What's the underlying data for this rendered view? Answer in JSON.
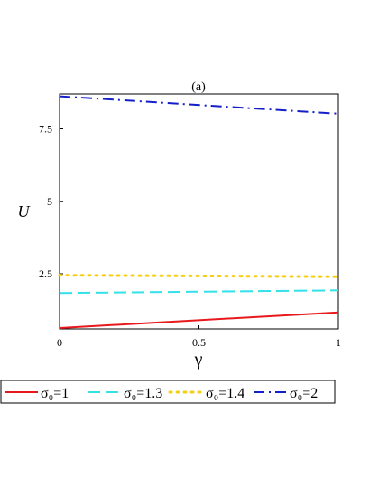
{
  "chart_data": {
    "type": "line",
    "title": "(a)",
    "xlabel": "γ",
    "ylabel": "U",
    "xlim": [
      0,
      1
    ],
    "ylim": [
      0.6,
      8.7
    ],
    "xticks": [
      0,
      0.5,
      1
    ],
    "xtick_labels": [
      "0",
      "0.5",
      "1"
    ],
    "yticks": [
      2.5,
      5,
      7.5
    ],
    "ytick_labels": [
      "2.5",
      "5",
      "7.5"
    ],
    "grid": false,
    "legend_position": "bottom",
    "series": [
      {
        "name": "σ₀=1",
        "color": "#e8191d",
        "dash": "solid",
        "x": [
          0,
          1
        ],
        "y": [
          0.63,
          1.17
        ]
      },
      {
        "name": "σ₀=1.3",
        "color": "#33e1e8",
        "dash": "dash",
        "x": [
          0,
          1
        ],
        "y": [
          1.84,
          1.93
        ]
      },
      {
        "name": "σ₀=1.4",
        "color": "#f5cf13",
        "dash": "dot",
        "x": [
          0,
          1
        ],
        "y": [
          2.45,
          2.4
        ]
      },
      {
        "name": "σ₀=2",
        "color": "#1420c7",
        "dash": "dashdot",
        "x": [
          0,
          1
        ],
        "y": [
          8.62,
          8.02
        ]
      }
    ]
  }
}
